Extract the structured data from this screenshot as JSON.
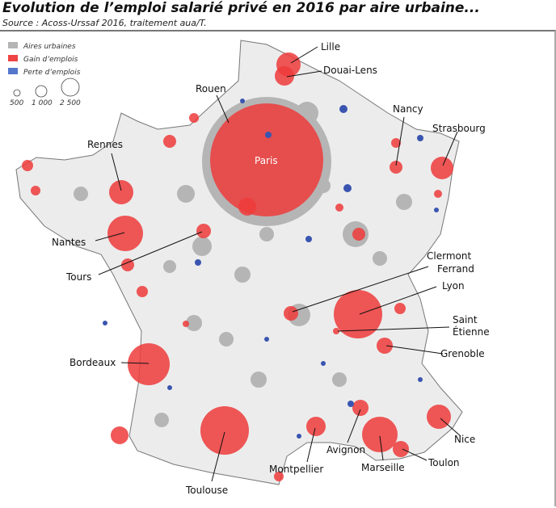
{
  "header": {
    "title": "Evolution de l’emploi salarié privé en 2016 par aire urbaine...",
    "source": "Source : Acoss-Urssaf 2016, traitement aua/T."
  },
  "legend": {
    "items": [
      {
        "label": "Aires urbaines",
        "color": "#b5b5b5"
      },
      {
        "label": "Gain d’emplois",
        "color": "#ee4444"
      },
      {
        "label": "Perte d’emplois",
        "color": "#5577cc"
      }
    ],
    "sizes": [
      "500",
      "1 000",
      "2 500"
    ]
  },
  "colors": {
    "gain": "#ee3b3b",
    "loss": "#3a55b0",
    "urban": "#b5b5b5",
    "land": "#ececec"
  },
  "cities": {
    "lille": "Lille",
    "douai": "Douai-Lens",
    "rouen": "Rouen",
    "nancy": "Nancy",
    "strasbourg": "Strasbourg",
    "rennes": "Rennes",
    "paris": "Paris",
    "nantes": "Nantes",
    "tours": "Tours",
    "clermont1": "Clermont",
    "clermont2": "Ferrand",
    "lyon": "Lyon",
    "stetienne1": "Saint",
    "stetienne2": "Étienne",
    "grenoble": "Grenoble",
    "bordeaux": "Bordeaux",
    "nice": "Nice",
    "toulon": "Toulon",
    "avignon": "Avignon",
    "marseille": "Marseille",
    "montpellier": "Montpellier",
    "toulouse": "Toulouse"
  }
}
